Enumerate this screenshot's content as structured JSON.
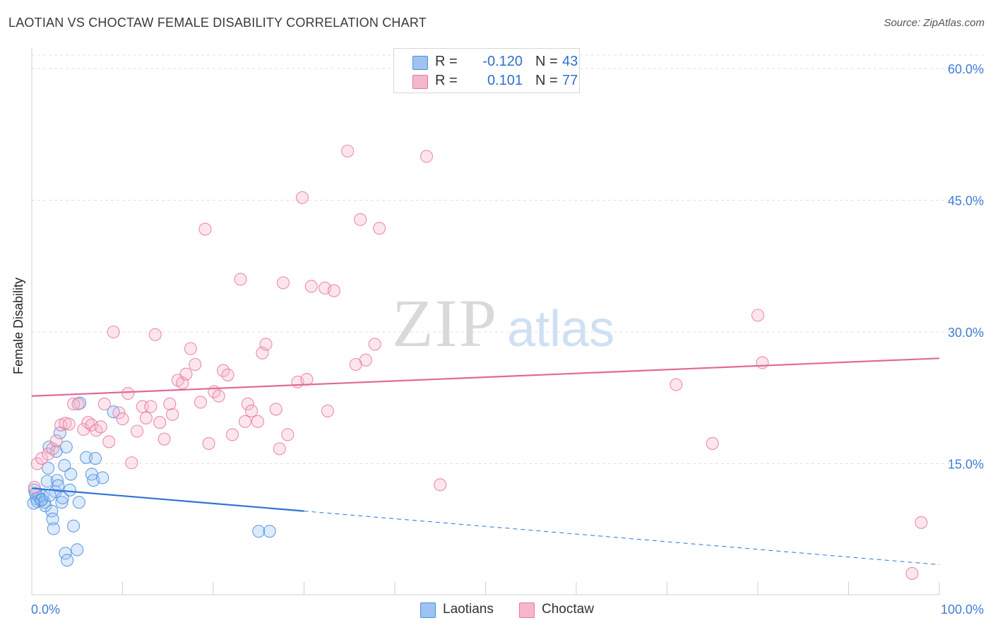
{
  "title": "LAOTIAN VS CHOCTAW FEMALE DISABILITY CORRELATION CHART",
  "source": "Source: ZipAtlas.com",
  "watermark": {
    "zip": "ZIP",
    "atlas": "atlas"
  },
  "stats": [
    {
      "r_label": "R =",
      "r": "-0.120",
      "n_label": "N =",
      "n": "43",
      "color": "#9ec3f0"
    },
    {
      "r_label": "R =",
      "r": "0.101",
      "n_label": "N =",
      "n": "77",
      "color": "#f5b6ca"
    }
  ],
  "legend": [
    {
      "label": "Laotians",
      "color": "#9ec3f0"
    },
    {
      "label": "Choctaw",
      "color": "#f5b6ca"
    }
  ],
  "chart_data": {
    "type": "scatter",
    "title": "LAOTIAN VS CHOCTAW FEMALE DISABILITY CORRELATION CHART",
    "xlabel": "",
    "ylabel": "Female Disability",
    "xlim": [
      0,
      100
    ],
    "ylim": [
      0,
      63
    ],
    "x_tick_labels": [
      "0.0%",
      "100.0%"
    ],
    "y_ticks": [
      15,
      30,
      45,
      60
    ],
    "y_tick_labels": [
      "15.0%",
      "30.0%",
      "45.0%",
      "60.0%"
    ],
    "grid": true,
    "series": [
      {
        "name": "Laotians",
        "color": "#4a8fe0",
        "trend": {
          "x0": 0,
          "y0": 12.2,
          "x1": 30,
          "y1": 9.6,
          "dash_to_x": 100,
          "dash_to_y": 3.5
        },
        "points": [
          [
            0.3,
            12.0
          ],
          [
            0.5,
            11.0
          ],
          [
            0.6,
            10.7
          ],
          [
            0.8,
            11.2
          ],
          [
            1.0,
            10.8
          ],
          [
            1.2,
            11.3
          ],
          [
            1.4,
            10.6
          ],
          [
            1.5,
            10.2
          ],
          [
            1.7,
            13.0
          ],
          [
            1.8,
            14.5
          ],
          [
            1.9,
            16.9
          ],
          [
            2.2,
            9.6
          ],
          [
            2.3,
            8.7
          ],
          [
            2.4,
            7.6
          ],
          [
            2.6,
            11.8
          ],
          [
            2.7,
            16.4
          ],
          [
            2.8,
            13.1
          ],
          [
            2.9,
            12.5
          ],
          [
            3.1,
            18.5
          ],
          [
            3.3,
            10.6
          ],
          [
            3.4,
            11.1
          ],
          [
            3.6,
            14.8
          ],
          [
            3.7,
            4.8
          ],
          [
            3.8,
            16.9
          ],
          [
            3.9,
            4.0
          ],
          [
            4.2,
            12.0
          ],
          [
            4.3,
            13.8
          ],
          [
            4.6,
            7.9
          ],
          [
            5.0,
            5.2
          ],
          [
            5.2,
            10.6
          ],
          [
            5.3,
            21.9
          ],
          [
            6.0,
            15.7
          ],
          [
            6.6,
            13.8
          ],
          [
            6.8,
            13.1
          ],
          [
            7.0,
            15.6
          ],
          [
            7.8,
            13.4
          ],
          [
            9.0,
            20.9
          ],
          [
            25.0,
            7.3
          ],
          [
            26.2,
            7.3
          ],
          [
            0.4,
            11.6
          ],
          [
            1.1,
            10.9
          ],
          [
            2.0,
            11.4
          ],
          [
            0.2,
            10.5
          ]
        ]
      },
      {
        "name": "Choctaw",
        "color": "#e8789c",
        "trend": {
          "x0": 0,
          "y0": 22.7,
          "x1": 100,
          "y1": 27.0
        },
        "points": [
          [
            0.3,
            12.3
          ],
          [
            0.6,
            15.0
          ],
          [
            1.1,
            15.6
          ],
          [
            1.8,
            16.1
          ],
          [
            2.3,
            16.7
          ],
          [
            2.7,
            17.6
          ],
          [
            3.2,
            19.4
          ],
          [
            3.7,
            19.6
          ],
          [
            4.1,
            19.5
          ],
          [
            4.6,
            21.8
          ],
          [
            5.1,
            21.8
          ],
          [
            5.7,
            18.9
          ],
          [
            6.2,
            19.7
          ],
          [
            6.6,
            19.4
          ],
          [
            7.1,
            18.8
          ],
          [
            7.6,
            19.2
          ],
          [
            8.0,
            21.8
          ],
          [
            8.5,
            17.5
          ],
          [
            9.0,
            30.0
          ],
          [
            9.6,
            20.8
          ],
          [
            10.0,
            20.1
          ],
          [
            10.6,
            23.0
          ],
          [
            11.0,
            15.1
          ],
          [
            11.6,
            18.7
          ],
          [
            12.2,
            21.5
          ],
          [
            12.6,
            20.2
          ],
          [
            13.1,
            21.5
          ],
          [
            13.6,
            29.7
          ],
          [
            14.1,
            19.7
          ],
          [
            14.6,
            17.8
          ],
          [
            15.2,
            21.8
          ],
          [
            15.5,
            20.6
          ],
          [
            16.1,
            24.5
          ],
          [
            16.6,
            24.2
          ],
          [
            17.0,
            25.2
          ],
          [
            17.5,
            28.1
          ],
          [
            18.0,
            26.3
          ],
          [
            18.6,
            22.0
          ],
          [
            19.1,
            41.7
          ],
          [
            19.5,
            17.3
          ],
          [
            20.1,
            23.2
          ],
          [
            20.6,
            22.7
          ],
          [
            21.1,
            25.6
          ],
          [
            21.6,
            25.1
          ],
          [
            22.1,
            18.3
          ],
          [
            23.0,
            36.0
          ],
          [
            23.5,
            19.8
          ],
          [
            23.8,
            21.8
          ],
          [
            24.2,
            21.0
          ],
          [
            24.9,
            19.8
          ],
          [
            25.4,
            27.6
          ],
          [
            25.8,
            28.6
          ],
          [
            26.9,
            21.2
          ],
          [
            27.3,
            16.7
          ],
          [
            27.7,
            35.6
          ],
          [
            28.2,
            18.3
          ],
          [
            29.3,
            24.3
          ],
          [
            29.8,
            45.3
          ],
          [
            30.3,
            24.6
          ],
          [
            30.8,
            35.2
          ],
          [
            32.3,
            35.0
          ],
          [
            32.6,
            21.0
          ],
          [
            33.3,
            34.7
          ],
          [
            34.8,
            50.6
          ],
          [
            35.7,
            26.3
          ],
          [
            36.2,
            42.8
          ],
          [
            36.8,
            26.8
          ],
          [
            37.8,
            28.6
          ],
          [
            38.3,
            41.8
          ],
          [
            43.5,
            50.0
          ],
          [
            45.0,
            12.6
          ],
          [
            71.0,
            24.0
          ],
          [
            75.0,
            17.3
          ],
          [
            80.0,
            31.9
          ],
          [
            80.5,
            26.5
          ],
          [
            98.0,
            8.3
          ],
          [
            97.0,
            2.5
          ]
        ]
      }
    ]
  }
}
